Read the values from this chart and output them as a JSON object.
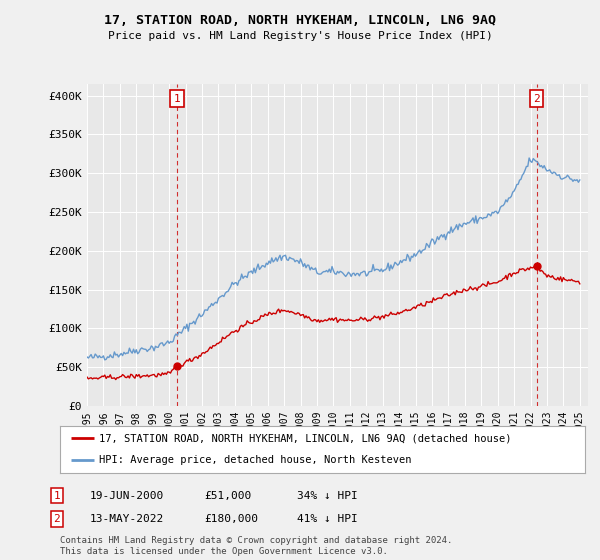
{
  "title": "17, STATION ROAD, NORTH HYKEHAM, LINCOLN, LN6 9AQ",
  "subtitle": "Price paid vs. HM Land Registry's House Price Index (HPI)",
  "ylabel_ticks": [
    "£0",
    "£50K",
    "£100K",
    "£150K",
    "£200K",
    "£250K",
    "£300K",
    "£350K",
    "£400K"
  ],
  "ytick_vals": [
    0,
    50000,
    100000,
    150000,
    200000,
    250000,
    300000,
    350000,
    400000
  ],
  "ylim": [
    0,
    415000
  ],
  "legend_line1": "17, STATION ROAD, NORTH HYKEHAM, LINCOLN, LN6 9AQ (detached house)",
  "legend_line2": "HPI: Average price, detached house, North Kesteven",
  "point1_date": "19-JUN-2000",
  "point1_price": "£51,000",
  "point1_hpi": "34% ↓ HPI",
  "point2_date": "13-MAY-2022",
  "point2_price": "£180,000",
  "point2_hpi": "41% ↓ HPI",
  "copyright": "Contains HM Land Registry data © Crown copyright and database right 2024.\nThis data is licensed under the Open Government Licence v3.0.",
  "red_color": "#cc0000",
  "blue_color": "#6699cc",
  "bg_color": "#f0f0f0",
  "plot_bg": "#e8e8e8",
  "grid_color": "#ffffff",
  "point1_x_year": 2000.47,
  "point2_x_year": 2022.37,
  "xlim_left": 1995.0,
  "xlim_right": 2025.5
}
